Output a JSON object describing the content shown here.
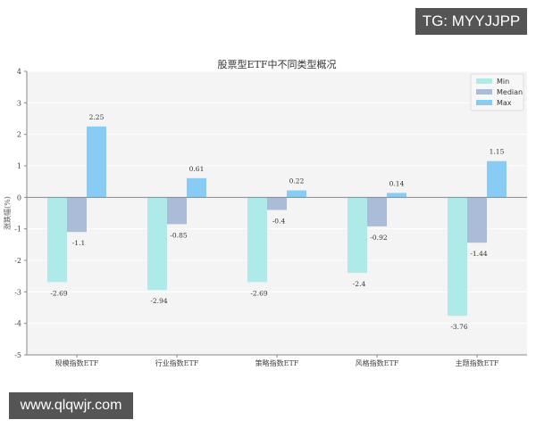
{
  "watermarks": {
    "top_right": "TG: MYYJJPP",
    "bottom_left": "www.qlqwjr.com"
  },
  "colors": {
    "Min": "#aeeae8",
    "Median": "#aabcd8",
    "Max": "#88cbf4",
    "plot_bg": "#f4f4f4",
    "axis": "#888888"
  },
  "chart_data": {
    "type": "bar",
    "title": "股票型ETF中不同类型概况",
    "xlabel": "",
    "ylabel": "涨跌幅(%)",
    "ylim": [
      -5,
      4
    ],
    "yticks": [
      4,
      3,
      2,
      1,
      0,
      -1,
      -2,
      -3,
      -4,
      -5
    ],
    "grid": true,
    "legend_position": "upper right",
    "categories": [
      "规模指数ETF",
      "行业指数ETF",
      "策略指数ETF",
      "风格指数ETF",
      "主题指数ETF"
    ],
    "series": [
      {
        "name": "Min",
        "values": [
          -2.69,
          -2.94,
          -2.69,
          -2.4,
          -3.76
        ]
      },
      {
        "name": "Median",
        "values": [
          -1.1,
          -0.85,
          -0.4,
          -0.92,
          -1.44
        ]
      },
      {
        "name": "Max",
        "values": [
          2.25,
          0.61,
          0.22,
          0.14,
          1.15
        ]
      }
    ]
  }
}
